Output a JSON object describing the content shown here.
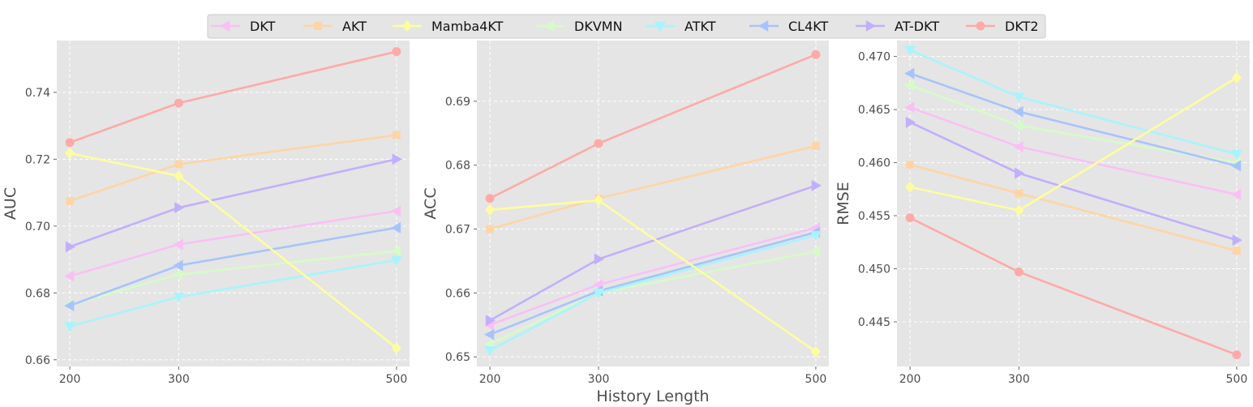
{
  "chart_data": {
    "type": "line",
    "x": [
      200,
      300,
      500
    ],
    "xlabel": "History Length",
    "legend_position": "top-center",
    "grid": true,
    "legend": [
      {
        "name": "DKT",
        "color": "#f9c0f6",
        "marker": "triangle-left"
      },
      {
        "name": "AKT",
        "color": "#fdd5a6",
        "marker": "square"
      },
      {
        "name": "Mamba4KT",
        "color": "#fdfd9f",
        "marker": "diamond"
      },
      {
        "name": "DKVMN",
        "color": "#d7fbc7",
        "marker": "triangle-left"
      },
      {
        "name": "ATKT",
        "color": "#a8f4fc",
        "marker": "triangle-down"
      },
      {
        "name": "CL4KT",
        "color": "#a8c3fc",
        "marker": "triangle-left"
      },
      {
        "name": "AT-DKT",
        "color": "#c2affc",
        "marker": "triangle-right"
      },
      {
        "name": "DKT2",
        "color": "#fdaaa8",
        "marker": "circle"
      }
    ],
    "panels": [
      {
        "ylabel": "AUC",
        "ylim": [
          0.658,
          0.7555
        ],
        "yticks": [
          "0.66",
          "0.68",
          "0.70",
          "0.72",
          "0.74"
        ],
        "yticks_values": [
          0.66,
          0.68,
          0.7,
          0.72,
          0.74
        ],
        "series": [
          {
            "name": "DKVMN",
            "values": [
              0.6765,
              0.6855,
              0.6925
            ]
          },
          {
            "name": "DKT",
            "values": [
              0.685,
              0.6945,
              0.7045
            ]
          },
          {
            "name": "CL4KT",
            "values": [
              0.6762,
              0.6882,
              0.6995
            ]
          },
          {
            "name": "ATKT",
            "values": [
              0.67,
              0.6788,
              0.6898
            ]
          },
          {
            "name": "AT-DKT",
            "values": [
              0.6938,
              0.7055,
              0.72
            ]
          },
          {
            "name": "AKT",
            "values": [
              0.7075,
              0.7185,
              0.7272
            ]
          },
          {
            "name": "Mamba4KT",
            "values": [
              0.7218,
              0.715,
              0.6635
            ]
          },
          {
            "name": "DKT2",
            "values": [
              0.725,
              0.7368,
              0.7522
            ]
          }
        ]
      },
      {
        "ylabel": "ACC",
        "ylim": [
          0.6485,
          0.6995
        ],
        "yticks": [
          "0.65",
          "0.66",
          "0.67",
          "0.68",
          "0.69"
        ],
        "yticks_values": [
          0.65,
          0.66,
          0.67,
          0.68,
          0.69
        ],
        "series": [
          {
            "name": "DKVMN",
            "values": [
              0.652,
              0.66,
              0.6665
            ]
          },
          {
            "name": "DKT",
            "values": [
              0.655,
              0.6613,
              0.6702
            ]
          },
          {
            "name": "CL4KT",
            "values": [
              0.6535,
              0.6603,
              0.6695
            ]
          },
          {
            "name": "ATKT",
            "values": [
              0.651,
              0.66,
              0.669
            ]
          },
          {
            "name": "AT-DKT",
            "values": [
              0.6557,
              0.6653,
              0.6768
            ]
          },
          {
            "name": "AKT",
            "values": [
              0.67,
              0.6748,
              0.683
            ]
          },
          {
            "name": "Mamba4KT",
            "values": [
              0.673,
              0.6745,
              0.6508
            ]
          },
          {
            "name": "DKT2",
            "values": [
              0.6748,
              0.6834,
              0.6973
            ]
          }
        ]
      },
      {
        "ylabel": "RMSE",
        "ylim": [
          0.4408,
          0.4715
        ],
        "yticks": [
          "0.445",
          "0.450",
          "0.455",
          "0.460",
          "0.465",
          "0.470"
        ],
        "yticks_values": [
          0.445,
          0.45,
          0.455,
          0.46,
          0.465,
          0.47
        ],
        "series": [
          {
            "name": "DKVMN",
            "values": [
              0.4673,
              0.4635,
              0.46
            ]
          },
          {
            "name": "DKT",
            "values": [
              0.4652,
              0.4615,
              0.457
            ]
          },
          {
            "name": "CL4KT",
            "values": [
              0.4684,
              0.4648,
              0.4597
            ]
          },
          {
            "name": "ATKT",
            "values": [
              0.4706,
              0.4662,
              0.4608
            ]
          },
          {
            "name": "AT-DKT",
            "values": [
              0.4638,
              0.459,
              0.4527
            ]
          },
          {
            "name": "AKT",
            "values": [
              0.4598,
              0.4571,
              0.4517
            ]
          },
          {
            "name": "Mamba4KT",
            "values": [
              0.4577,
              0.4555,
              0.468
            ]
          },
          {
            "name": "DKT2",
            "values": [
              0.4548,
              0.4497,
              0.4419
            ]
          }
        ]
      }
    ]
  }
}
